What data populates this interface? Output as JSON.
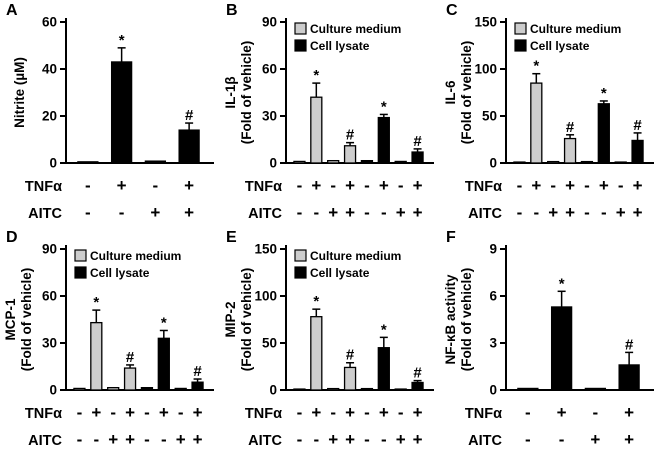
{
  "figure": {
    "colors": {
      "bar_black": "#000000",
      "bar_gray": "#cdcdcd",
      "axis": "#000000",
      "background": "#ffffff"
    },
    "significance_markers": {
      "star": "*",
      "hash": "#"
    }
  },
  "chart_data": [
    {
      "type": "bar",
      "panel": "A",
      "ylabel_lines": [
        "Nitrite (µM)"
      ],
      "ylim": [
        0,
        60
      ],
      "yticks": [
        0,
        20,
        40,
        60
      ],
      "legend": [],
      "series": [
        {
          "name": "Cell lysate",
          "color": "black",
          "values": [
            0.5,
            43,
            0.8,
            14
          ],
          "errors": [
            0,
            6,
            0,
            3
          ],
          "annotations": [
            "",
            "*",
            "",
            "#"
          ]
        }
      ],
      "x_rows": [
        {
          "label": "TNFα",
          "signs": [
            "-",
            "+",
            "-",
            "+"
          ]
        },
        {
          "label": "AITC",
          "signs": [
            "-",
            "-",
            "+",
            "+"
          ]
        }
      ]
    },
    {
      "type": "bar",
      "panel": "B",
      "ylabel_lines": [
        "IL-1β",
        "(Fold of vehicle)"
      ],
      "ylim": [
        0,
        90
      ],
      "yticks": [
        0,
        30,
        60,
        90
      ],
      "legend": [
        {
          "label": "Culture medium",
          "color": "gray"
        },
        {
          "label": "Cell lysate",
          "color": "black"
        }
      ],
      "series": [
        {
          "name": "Culture medium",
          "color": "gray",
          "values": [
            1,
            42,
            1.5,
            11
          ],
          "errors": [
            0,
            9,
            0,
            2
          ],
          "annotations": [
            "",
            "*",
            "",
            "#"
          ]
        },
        {
          "name": "Cell lysate",
          "color": "black",
          "values": [
            1.5,
            29,
            1,
            7
          ],
          "errors": [
            0,
            2,
            0,
            2
          ],
          "annotations": [
            "",
            "*",
            "",
            "#"
          ]
        }
      ],
      "x_rows": [
        {
          "label": "TNFα",
          "signs": [
            "-",
            "+",
            "-",
            "+",
            "-",
            "+",
            "-",
            "+"
          ]
        },
        {
          "label": "AITC",
          "signs": [
            "-",
            "-",
            "+",
            "+",
            "-",
            "-",
            "+",
            "+"
          ]
        }
      ]
    },
    {
      "type": "bar",
      "panel": "C",
      "ylabel_lines": [
        "IL-6",
        "(Fold of vehicle)"
      ],
      "ylim": [
        0,
        150
      ],
      "yticks": [
        0,
        50,
        100,
        150
      ],
      "legend": [
        {
          "label": "Culture medium",
          "color": "gray"
        },
        {
          "label": "Cell lysate",
          "color": "black"
        }
      ],
      "series": [
        {
          "name": "Culture medium",
          "color": "gray",
          "values": [
            1,
            85,
            1.5,
            26
          ],
          "errors": [
            0,
            10,
            0,
            4
          ],
          "annotations": [
            "",
            "*",
            "",
            "#"
          ]
        },
        {
          "name": "Cell lysate",
          "color": "black",
          "values": [
            1.5,
            63,
            1,
            24
          ],
          "errors": [
            0,
            3,
            0,
            8
          ],
          "annotations": [
            "",
            "*",
            "",
            "#"
          ]
        }
      ],
      "x_rows": [
        {
          "label": "TNFα",
          "signs": [
            "-",
            "+",
            "-",
            "+",
            "-",
            "+",
            "-",
            "+"
          ]
        },
        {
          "label": "AITC",
          "signs": [
            "-",
            "-",
            "+",
            "+",
            "-",
            "-",
            "+",
            "+"
          ]
        }
      ]
    },
    {
      "type": "bar",
      "panel": "D",
      "ylabel_lines": [
        "MCP-1",
        "(Fold of vehicle)"
      ],
      "ylim": [
        0,
        90
      ],
      "yticks": [
        0,
        30,
        60,
        90
      ],
      "legend": [
        {
          "label": "Culture medium",
          "color": "gray"
        },
        {
          "label": "Cell lysate",
          "color": "black"
        }
      ],
      "series": [
        {
          "name": "Culture medium",
          "color": "gray",
          "values": [
            1,
            43,
            1.5,
            14
          ],
          "errors": [
            0,
            8,
            0,
            2
          ],
          "annotations": [
            "",
            "*",
            "",
            "#"
          ]
        },
        {
          "name": "Cell lysate",
          "color": "black",
          "values": [
            1.5,
            33,
            1,
            5
          ],
          "errors": [
            0,
            5,
            0,
            2
          ],
          "annotations": [
            "",
            "*",
            "",
            "#"
          ]
        }
      ],
      "x_rows": [
        {
          "label": "TNFα",
          "signs": [
            "-",
            "+",
            "-",
            "+",
            "-",
            "+",
            "-",
            "+"
          ]
        },
        {
          "label": "AITC",
          "signs": [
            "-",
            "-",
            "+",
            "+",
            "-",
            "-",
            "+",
            "+"
          ]
        }
      ]
    },
    {
      "type": "bar",
      "panel": "E",
      "ylabel_lines": [
        "MIP-2",
        "(Fold of vehicle)"
      ],
      "ylim": [
        0,
        150
      ],
      "yticks": [
        0,
        50,
        100,
        150
      ],
      "legend": [
        {
          "label": "Culture medium",
          "color": "gray"
        },
        {
          "label": "Cell lysate",
          "color": "black"
        }
      ],
      "series": [
        {
          "name": "Culture medium",
          "color": "gray",
          "values": [
            1,
            78,
            1.5,
            24
          ],
          "errors": [
            0,
            8,
            0,
            5
          ],
          "annotations": [
            "",
            "*",
            "",
            "#"
          ]
        },
        {
          "name": "Cell lysate",
          "color": "black",
          "values": [
            1.5,
            45,
            1,
            8
          ],
          "errors": [
            0,
            11,
            0,
            2
          ],
          "annotations": [
            "",
            "*",
            "",
            "#"
          ]
        }
      ],
      "x_rows": [
        {
          "label": "TNFα",
          "signs": [
            "-",
            "+",
            "-",
            "+",
            "-",
            "+",
            "-",
            "+"
          ]
        },
        {
          "label": "AITC",
          "signs": [
            "-",
            "-",
            "+",
            "+",
            "-",
            "-",
            "+",
            "+"
          ]
        }
      ]
    },
    {
      "type": "bar",
      "panel": "F",
      "ylabel_lines": [
        "NF-κB activity",
        "(Fold of vehicle)"
      ],
      "ylim": [
        0,
        9
      ],
      "yticks": [
        0,
        3,
        6,
        9
      ],
      "legend": [],
      "series": [
        {
          "name": "Cell lysate",
          "color": "black",
          "values": [
            0.1,
            5.3,
            0.1,
            1.6
          ],
          "errors": [
            0,
            1.0,
            0,
            0.8
          ],
          "annotations": [
            "",
            "*",
            "",
            "#"
          ]
        }
      ],
      "x_rows": [
        {
          "label": "TNFα",
          "signs": [
            "-",
            "+",
            "-",
            "+"
          ]
        },
        {
          "label": "AITC",
          "signs": [
            "-",
            "-",
            "+",
            "+"
          ]
        }
      ]
    }
  ]
}
